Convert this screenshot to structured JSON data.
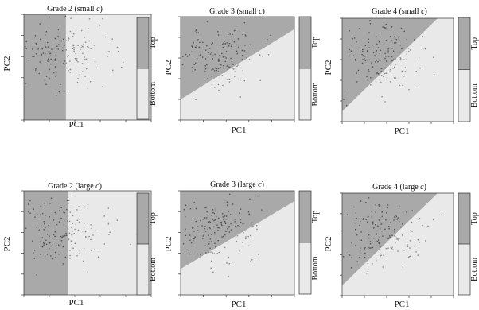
{
  "figure": {
    "panel_axis": {
      "xlabel": "PC1",
      "ylabel": "PC2"
    },
    "legend": {
      "top_label": "Top",
      "bottom_label": "Bottom"
    },
    "colors": {
      "top_region": "#a9a9a9",
      "bottom_region": "#e9e9e9",
      "point_top": "#555555",
      "point_bottom": "#8a8a8a"
    }
  },
  "chart_data": [
    {
      "type": "scatter",
      "title": "Grade 2 (small c)",
      "title_main": "Grade 2 (small ",
      "title_var": "c",
      "title_end": ")",
      "boundary": {
        "kind": "vertical",
        "x": 0.33
      },
      "xlabel": "PC1",
      "ylabel": "PC2",
      "xlim": [
        0,
        1
      ],
      "ylim": [
        0,
        1
      ],
      "legend": [
        "Top",
        "Bottom"
      ],
      "grid": false,
      "n_points": 160
    },
    {
      "type": "scatter",
      "title": "Grade 3 (small c)",
      "title_main": "Grade 3 (small ",
      "title_var": "c",
      "title_end": ")",
      "boundary": {
        "kind": "line",
        "y_at_left": 0.2,
        "y_at_right": 0.88
      },
      "xlabel": "PC1",
      "ylabel": "PC2",
      "xlim": [
        0,
        1
      ],
      "ylim": [
        0,
        1
      ],
      "legend": [
        "Top",
        "Bottom"
      ],
      "grid": false,
      "n_points": 170
    },
    {
      "type": "scatter",
      "title": "Grade 4 (small c)",
      "title_main": "Grade 4 (small ",
      "title_var": "c",
      "title_end": ")",
      "boundary": {
        "kind": "line",
        "y_at_left": 0.1,
        "y_at_right": 1.15
      },
      "xlabel": "PC1",
      "ylabel": "PC2",
      "xlim": [
        0,
        1
      ],
      "ylim": [
        0,
        1
      ],
      "legend": [
        "Top",
        "Bottom"
      ],
      "grid": false,
      "n_points": 170
    },
    {
      "type": "scatter",
      "title": "Grade 2 (large c)",
      "title_main": "Grade 2 (large ",
      "title_var": "c",
      "title_end": ")",
      "boundary": {
        "kind": "vertical",
        "x": 0.35
      },
      "xlabel": "PC1",
      "ylabel": "PC2",
      "xlim": [
        0,
        1
      ],
      "ylim": [
        0,
        1
      ],
      "legend": [
        "Top",
        "Bottom"
      ],
      "grid": false,
      "n_points": 160
    },
    {
      "type": "scatter",
      "title": "Grade 3 (large c)",
      "title_main": "Grade 3 (large ",
      "title_var": "c",
      "title_end": ")",
      "boundary": {
        "kind": "line",
        "y_at_left": 0.25,
        "y_at_right": 0.9
      },
      "xlabel": "PC1",
      "ylabel": "PC2",
      "xlim": [
        0,
        1
      ],
      "ylim": [
        0,
        1
      ],
      "legend": [
        "Top",
        "Bottom"
      ],
      "grid": false,
      "n_points": 170
    },
    {
      "type": "scatter",
      "title": "Grade 4 (large c)",
      "title_main": "Grade 4 (large ",
      "title_var": "c",
      "title_end": ")",
      "boundary": {
        "kind": "line",
        "y_at_left": 0.1,
        "y_at_right": 1.15
      },
      "xlabel": "PC1",
      "ylabel": "PC2",
      "xlim": [
        0,
        1
      ],
      "ylim": [
        0,
        1
      ],
      "legend": [
        "Top",
        "Bottom"
      ],
      "grid": false,
      "n_points": 170
    }
  ]
}
